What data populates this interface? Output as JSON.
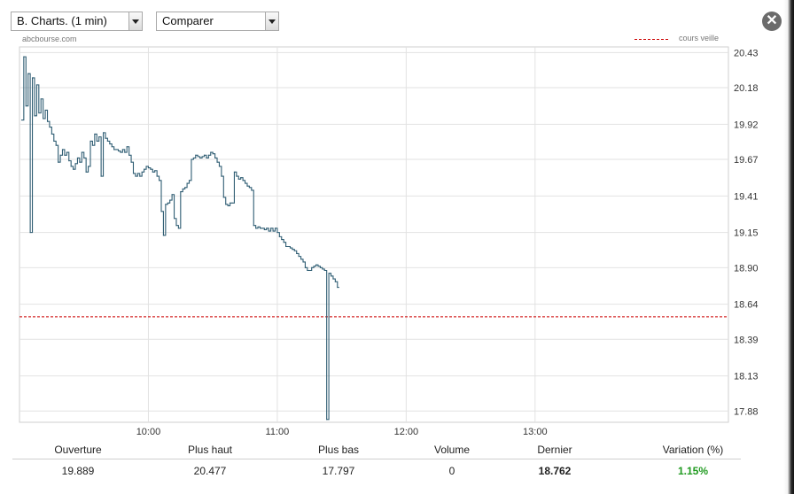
{
  "toolbar": {
    "period_select": "B. Charts. (1 min)",
    "compare_select": "Comparer",
    "close_label": "✕"
  },
  "source": "abcbourse.com",
  "legend": {
    "reference_label": "cours veille",
    "reference_color": "#cc0000"
  },
  "chart_data": {
    "type": "line",
    "x_start": "09:00",
    "x_end": "14:30",
    "xticks": [
      {
        "t": 600,
        "label": "10:00"
      },
      {
        "t": 660,
        "label": "11:00"
      },
      {
        "t": 720,
        "label": "12:00"
      },
      {
        "t": 780,
        "label": "13:00"
      }
    ],
    "yticks": [
      "20.43",
      "20.18",
      "19.92",
      "19.67",
      "19.41",
      "19.15",
      "18.90",
      "18.64",
      "18.39",
      "18.13",
      "17.88"
    ],
    "ylim": [
      17.8,
      20.47
    ],
    "reference_value": 18.55,
    "series_color": "#2f5d73",
    "series": [
      {
        "values": [
          [
            541,
            19.95
          ],
          [
            542,
            20.4
          ],
          [
            543,
            20.05
          ],
          [
            544,
            20.28
          ],
          [
            545,
            19.15
          ],
          [
            546,
            20.25
          ],
          [
            547,
            19.98
          ],
          [
            548,
            20.2
          ],
          [
            549,
            20.0
          ],
          [
            550,
            20.1
          ],
          [
            551,
            19.96
          ],
          [
            552,
            20.02
          ],
          [
            553,
            19.94
          ],
          [
            554,
            19.9
          ],
          [
            555,
            19.85
          ],
          [
            556,
            19.8
          ],
          [
            557,
            19.77
          ],
          [
            558,
            19.65
          ],
          [
            559,
            19.7
          ],
          [
            560,
            19.74
          ],
          [
            561,
            19.7
          ],
          [
            562,
            19.72
          ],
          [
            563,
            19.66
          ],
          [
            564,
            19.62
          ],
          [
            565,
            19.6
          ],
          [
            566,
            19.64
          ],
          [
            567,
            19.68
          ],
          [
            568,
            19.65
          ],
          [
            569,
            19.72
          ],
          [
            570,
            19.68
          ],
          [
            571,
            19.58
          ],
          [
            572,
            19.62
          ],
          [
            573,
            19.8
          ],
          [
            574,
            19.77
          ],
          [
            575,
            19.85
          ],
          [
            576,
            19.8
          ],
          [
            577,
            19.83
          ],
          [
            578,
            19.55
          ],
          [
            579,
            19.86
          ],
          [
            580,
            19.82
          ],
          [
            581,
            19.8
          ],
          [
            582,
            19.78
          ],
          [
            583,
            19.76
          ],
          [
            584,
            19.74
          ],
          [
            585,
            19.74
          ],
          [
            586,
            19.73
          ],
          [
            587,
            19.72
          ],
          [
            588,
            19.74
          ],
          [
            589,
            19.72
          ],
          [
            590,
            19.76
          ],
          [
            591,
            19.7
          ],
          [
            592,
            19.65
          ],
          [
            593,
            19.57
          ],
          [
            594,
            19.55
          ],
          [
            595,
            19.57
          ],
          [
            596,
            19.55
          ],
          [
            597,
            19.58
          ],
          [
            598,
            19.6
          ],
          [
            599,
            19.62
          ],
          [
            600,
            19.61
          ],
          [
            601,
            19.6
          ],
          [
            602,
            19.58
          ],
          [
            603,
            19.59
          ],
          [
            604,
            19.55
          ],
          [
            605,
            19.52
          ],
          [
            606,
            19.3
          ],
          [
            607,
            19.13
          ],
          [
            608,
            19.35
          ],
          [
            609,
            19.36
          ],
          [
            610,
            19.38
          ],
          [
            611,
            19.42
          ],
          [
            612,
            19.25
          ],
          [
            613,
            19.2
          ],
          [
            614,
            19.18
          ],
          [
            615,
            19.44
          ],
          [
            616,
            19.46
          ],
          [
            617,
            19.47
          ],
          [
            618,
            19.5
          ],
          [
            619,
            19.52
          ],
          [
            620,
            19.67
          ],
          [
            621,
            19.68
          ],
          [
            622,
            19.7
          ],
          [
            623,
            19.69
          ],
          [
            624,
            19.68
          ],
          [
            625,
            19.69
          ],
          [
            626,
            19.7
          ],
          [
            627,
            19.68
          ],
          [
            628,
            19.7
          ],
          [
            629,
            19.72
          ],
          [
            630,
            19.71
          ],
          [
            631,
            19.68
          ],
          [
            632,
            19.65
          ],
          [
            633,
            19.62
          ],
          [
            634,
            19.55
          ],
          [
            635,
            19.4
          ],
          [
            636,
            19.35
          ],
          [
            637,
            19.34
          ],
          [
            638,
            19.36
          ],
          [
            639,
            19.36
          ],
          [
            640,
            19.58
          ],
          [
            641,
            19.55
          ],
          [
            642,
            19.53
          ],
          [
            643,
            19.54
          ],
          [
            644,
            19.52
          ],
          [
            645,
            19.5
          ],
          [
            646,
            19.48
          ],
          [
            647,
            19.47
          ],
          [
            648,
            19.45
          ],
          [
            649,
            19.2
          ],
          [
            650,
            19.18
          ],
          [
            651,
            19.19
          ],
          [
            652,
            19.18
          ],
          [
            653,
            19.18
          ],
          [
            654,
            19.17
          ],
          [
            655,
            19.18
          ],
          [
            656,
            19.16
          ],
          [
            657,
            19.18
          ],
          [
            658,
            19.16
          ],
          [
            659,
            19.18
          ],
          [
            660,
            19.15
          ],
          [
            661,
            19.12
          ],
          [
            662,
            19.1
          ],
          [
            663,
            19.08
          ],
          [
            664,
            19.05
          ],
          [
            665,
            19.05
          ],
          [
            666,
            19.04
          ],
          [
            667,
            19.03
          ],
          [
            668,
            19.02
          ],
          [
            669,
            19.0
          ],
          [
            670,
            18.98
          ],
          [
            671,
            18.96
          ],
          [
            672,
            18.94
          ],
          [
            673,
            18.9
          ],
          [
            674,
            18.88
          ],
          [
            675,
            18.88
          ],
          [
            676,
            18.9
          ],
          [
            677,
            18.91
          ],
          [
            678,
            18.92
          ],
          [
            679,
            18.91
          ],
          [
            680,
            18.9
          ],
          [
            681,
            18.89
          ],
          [
            682,
            18.88
          ],
          [
            683,
            17.82
          ],
          [
            684,
            18.86
          ],
          [
            685,
            18.84
          ],
          [
            686,
            18.82
          ],
          [
            687,
            18.8
          ],
          [
            688,
            18.76
          ]
        ]
      }
    ]
  },
  "stats": {
    "headers": [
      "Ouverture",
      "Plus haut",
      "Plus bas",
      "Volume",
      "Dernier",
      "Variation (%)"
    ],
    "values": [
      "19.889",
      "20.477",
      "17.797",
      "0",
      "18.762",
      "1.15%"
    ],
    "variation_color": "#1f9a1f"
  }
}
